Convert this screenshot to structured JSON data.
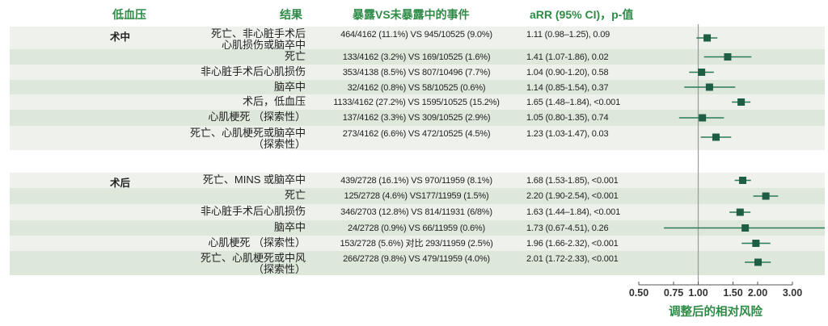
{
  "headers": {
    "group": "低血压",
    "outcome": "结果",
    "counts": "暴露VS未暴露中的事件",
    "arr": "aRR (95% CI)，p-值"
  },
  "groups": [
    {
      "label": "术中",
      "rows": [
        {
          "outcome": "死亡、非心脏手术后心肌损伤或脑卒中",
          "outcome_lines": [
            "死亡、非心脏手术后",
            "心肌损伤或脑卒中"
          ],
          "counts": "464/4162 (11.1%) VS 945/10525 (9.0%)",
          "arr": "1.11 (0.98–1.25), 0.09"
        },
        {
          "outcome": "死亡",
          "outcome_lines": [
            "死亡"
          ],
          "counts": "133/4162 (3.2%) VS 169/10525 (1.6%)",
          "arr": "1.41 (1.07-1.86), 0.02"
        },
        {
          "outcome": "非心脏手术后心肌损伤",
          "outcome_lines": [
            "非心脏手术后心肌损伤"
          ],
          "counts": "353/4138 (8.5%) VS 807/10496 (7.7%)",
          "arr": "1.04 (0.90-1.20), 0.58"
        },
        {
          "outcome": "脑卒中",
          "outcome_lines": [
            "脑卒中"
          ],
          "counts": "32/4162 (0.8%) VS 58/10525 (0.6%)",
          "arr": "1.14 (0.85-1.54), 0.37"
        },
        {
          "outcome": "术后，低血压",
          "outcome_lines": [
            "术后，低血压"
          ],
          "counts": "1133/4162 (27.2%) VS 1595/10525 (15.2%)",
          "arr": "1.65 (1.48–1.84), <0.001"
        },
        {
          "outcome": "心肌梗死 （探索性）",
          "outcome_lines": [
            "心肌梗死 （探索性）"
          ],
          "counts": "137/4162 (3.3%) VS 309/10525 (2.9%)",
          "arr": "1.05 (0.80-1.35), 0.74"
        },
        {
          "outcome": "死亡、心肌梗死或脑卒中（探索性）",
          "outcome_lines": [
            "死亡、心肌梗死或脑卒中",
            "（探索性）"
          ],
          "counts": "273/4162 (6.6%) VS 472/10525 (4.5%)",
          "arr": "1.23 (1.03-1.47), 0.03"
        }
      ]
    },
    {
      "label": "术后",
      "rows": [
        {
          "outcome": "死亡、MINS 或脑卒中",
          "outcome_lines": [
            "死亡、MINS 或脑卒中"
          ],
          "counts": "439/2728 (16.1%) VS 970/11959 (8.1%)",
          "arr": "1.68 (1.53-1.85), <0.001"
        },
        {
          "outcome": "死亡",
          "outcome_lines": [
            "死亡"
          ],
          "counts": "125/2728 (4.6%) VS177/11959 (1.5%)",
          "arr": "2.20 (1.90-2.54), <0.001"
        },
        {
          "outcome": "非心脏手术后心肌损伤",
          "outcome_lines": [
            "非心脏手术后心肌损伤"
          ],
          "counts": "346/2703 (12.8%) VS 814/11931 (6/8%)",
          "arr": "1.63 (1.44–1.84), <0.001"
        },
        {
          "outcome": "脑卒中",
          "outcome_lines": [
            "脑卒中"
          ],
          "counts": "24/2728 (0.9%) VS 66/11959 (0.6%)",
          "arr": "1.73 (0.67-4.51), 0.26"
        },
        {
          "outcome": "心肌梗死 （探索性）",
          "outcome_lines": [
            "心肌梗死 （探索性）"
          ],
          "counts": "153/2728 (5.6%) 对比 293/11959 (2.5%)",
          "arr": "1.96 (1.66-2.32), <0.001"
        },
        {
          "outcome": "死亡、心肌梗死或中风（探索性）",
          "outcome_lines": [
            "死亡、心肌梗死或中风",
            "（探索性）"
          ],
          "counts": "266/2728 (9.8%) VS 479/11959 (4.0%)",
          "arr": "2.01 (1.72-2.33), <0.001"
        }
      ]
    }
  ],
  "chart_data": {
    "type": "forest",
    "scale": "log",
    "xlabel": "调整后的相对风险",
    "xticks": [
      0.5,
      0.75,
      1.0,
      1.5,
      2.0,
      3.0
    ],
    "xtick_labels": [
      "0.50",
      "0.75",
      "1.00",
      "1.50",
      "2.00",
      "3.00"
    ],
    "reference_line": 1.0,
    "colors": {
      "marker": "#1e5e44",
      "ci": "#2a7a55",
      "header": "#2e8b47",
      "reference": "#9a9a9a"
    },
    "series": [
      {
        "name": "术中",
        "points": [
          {
            "est": 1.11,
            "lo": 0.98,
            "hi": 1.25
          },
          {
            "est": 1.41,
            "lo": 1.07,
            "hi": 1.86
          },
          {
            "est": 1.04,
            "lo": 0.9,
            "hi": 1.2
          },
          {
            "est": 1.14,
            "lo": 0.85,
            "hi": 1.54
          },
          {
            "est": 1.65,
            "lo": 1.48,
            "hi": 1.84
          },
          {
            "est": 1.05,
            "lo": 0.8,
            "hi": 1.35
          },
          {
            "est": 1.23,
            "lo": 1.03,
            "hi": 1.47
          }
        ]
      },
      {
        "name": "术后",
        "points": [
          {
            "est": 1.68,
            "lo": 1.53,
            "hi": 1.85
          },
          {
            "est": 2.2,
            "lo": 1.9,
            "hi": 2.54
          },
          {
            "est": 1.63,
            "lo": 1.44,
            "hi": 1.84
          },
          {
            "est": 1.73,
            "lo": 0.67,
            "hi": 4.51
          },
          {
            "est": 1.96,
            "lo": 1.66,
            "hi": 2.32
          },
          {
            "est": 2.01,
            "lo": 1.72,
            "hi": 2.33
          }
        ]
      }
    ]
  }
}
